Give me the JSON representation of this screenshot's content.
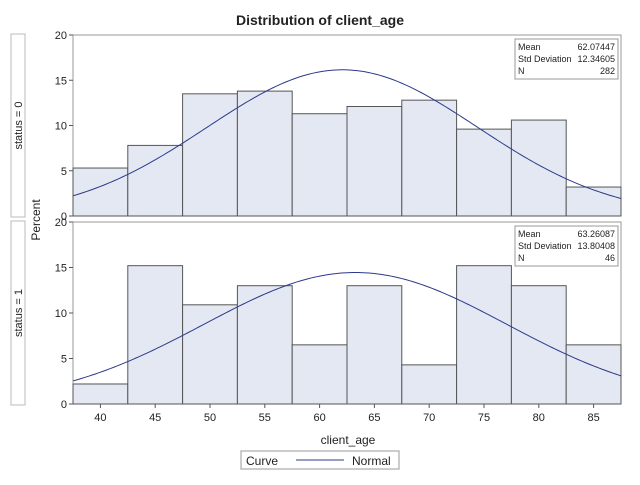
{
  "chart_data": {
    "type": "bar",
    "title": "Distribution of client_age",
    "xlabel": "client_age",
    "ylabel": "Percent",
    "xlim": [
      37.5,
      87.5
    ],
    "ylim": [
      0,
      20
    ],
    "x_ticks": [
      40,
      45,
      50,
      55,
      60,
      65,
      70,
      75,
      80,
      85
    ],
    "y_ticks": [
      0,
      5,
      10,
      15,
      20
    ],
    "bin_edges": [
      37.5,
      42.5,
      47.5,
      52.5,
      57.5,
      62.5,
      67.5,
      72.5,
      77.5,
      82.5,
      87.5
    ],
    "grid": false,
    "colors": {
      "bar_fill": "#e4e8f2",
      "bar_stroke": "#555555",
      "curve": "#2b3a8c",
      "frame": "#999999"
    },
    "panels": [
      {
        "label": "status = 0",
        "values": [
          5.3,
          7.8,
          13.5,
          13.8,
          11.3,
          12.1,
          12.8,
          9.6,
          10.6,
          3.2
        ],
        "stats": {
          "rows": [
            {
              "name": "Mean",
              "value": "62.07447"
            },
            {
              "name": "Std Deviation",
              "value": "12.34605"
            },
            {
              "name": "N",
              "value": "282"
            }
          ],
          "mean": 62.07447,
          "std": 12.34605
        }
      },
      {
        "label": "status = 1",
        "values": [
          2.2,
          15.2,
          10.9,
          13.0,
          6.5,
          13.0,
          4.3,
          15.2,
          13.0,
          6.5
        ],
        "stats": {
          "rows": [
            {
              "name": "Mean",
              "value": "63.26087"
            },
            {
              "name": "Std Deviation",
              "value": "13.80408"
            },
            {
              "name": "N",
              "value": "46"
            }
          ],
          "mean": 63.26087,
          "std": 13.80408
        }
      }
    ],
    "legend": {
      "title": "Curve",
      "entries": [
        {
          "name": "Normal"
        }
      ],
      "position": "bottom"
    }
  }
}
